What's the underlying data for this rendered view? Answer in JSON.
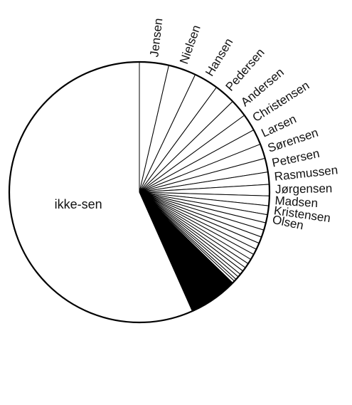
{
  "chart_data": {
    "type": "pie",
    "title": "",
    "slices": [
      {
        "label": "Jensen",
        "value": 3.6
      },
      {
        "label": "Nielsen",
        "value": 3.4
      },
      {
        "label": "Hansen",
        "value": 3.0
      },
      {
        "label": "Pedersen",
        "value": 2.6
      },
      {
        "label": "Andersen",
        "value": 2.2
      },
      {
        "label": "Christensen",
        "value": 2.1
      },
      {
        "label": "Larsen",
        "value": 1.9
      },
      {
        "label": "Sørensen",
        "value": 1.8
      },
      {
        "label": "Petersen",
        "value": 1.7
      },
      {
        "label": "Rasmussen",
        "value": 1.5
      },
      {
        "label": "Jørgensen",
        "value": 1.4
      },
      {
        "label": "Madsen",
        "value": 1.2
      },
      {
        "label": "Kristensen",
        "value": 1.1
      },
      {
        "label": "Olsen",
        "value": 1.0
      },
      {
        "label": "",
        "value": 0.9
      },
      {
        "label": "",
        "value": 0.9
      },
      {
        "label": "",
        "value": 0.8
      },
      {
        "label": "",
        "value": 0.8
      },
      {
        "label": "",
        "value": 0.7
      },
      {
        "label": "",
        "value": 0.7
      },
      {
        "label": "",
        "value": 0.6
      },
      {
        "label": "",
        "value": 0.6
      },
      {
        "label": "",
        "value": 0.5
      },
      {
        "label": "",
        "value": 0.5
      },
      {
        "label": "",
        "value": 0.4
      },
      {
        "label": "",
        "value": 0.4
      },
      {
        "label": "",
        "value": 0.3
      },
      {
        "label": "",
        "value": 0.3
      },
      {
        "label": "",
        "value": 6.0,
        "fill": "#000000"
      },
      {
        "label": "ikke-sen",
        "value": 56.1
      }
    ],
    "fill": "#ffffff",
    "stroke": "#000000"
  }
}
